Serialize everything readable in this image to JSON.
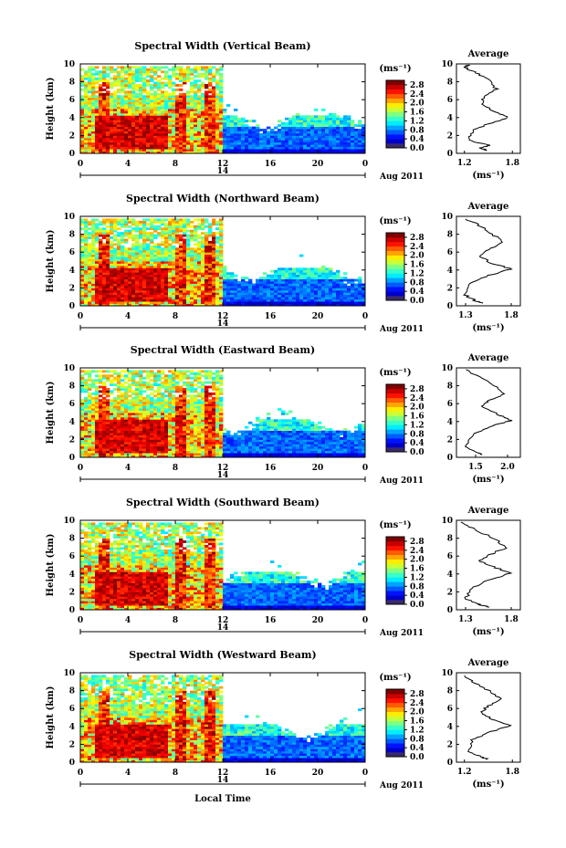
{
  "figure": {
    "xlabel": "Local Time",
    "date_label": "Aug 2011",
    "day_label": "14",
    "unit_label": "(ms⁻¹)"
  },
  "chart_data": [
    {
      "type": "heatmap",
      "title": "Spectral Width (Vertical Beam)",
      "ylabel": "Height (km)",
      "x_ticks": [
        "0",
        "4",
        "8",
        "12",
        "16",
        "20",
        "0"
      ],
      "y_ticks": [
        "0",
        "2",
        "4",
        "6",
        "8",
        "10"
      ],
      "xlim": [
        0,
        24
      ],
      "ylim": [
        0,
        10
      ],
      "colorbar": {
        "ticks": [
          "0.0",
          "0.4",
          "0.8",
          "1.2",
          "1.6",
          "2.0",
          "2.4",
          "2.8"
        ],
        "range": [
          0,
          3.0
        ]
      },
      "average": {
        "title": "Average",
        "xlabel": "(ms⁻¹)",
        "x_ticks": [
          "1.2",
          "1.8"
        ],
        "xlim": [
          1.1,
          1.9
        ],
        "y_ticks": [
          "0",
          "2",
          "4",
          "6",
          "8",
          "10"
        ],
        "profile": [
          [
            1.5,
            0.3
          ],
          [
            1.4,
            0.6
          ],
          [
            1.5,
            0.9
          ],
          [
            1.25,
            1.5
          ],
          [
            1.3,
            2.5
          ],
          [
            1.5,
            3.3
          ],
          [
            1.75,
            4.0
          ],
          [
            1.6,
            4.6
          ],
          [
            1.4,
            5.5
          ],
          [
            1.45,
            6.3
          ],
          [
            1.6,
            7.2
          ],
          [
            1.5,
            8.2
          ],
          [
            1.35,
            9.0
          ],
          [
            1.2,
            9.6
          ],
          [
            1.25,
            9.9
          ]
        ]
      }
    },
    {
      "type": "heatmap",
      "title": "Spectral Width (Northward Beam)",
      "ylabel": "Height (km)",
      "x_ticks": [
        "0",
        "4",
        "8",
        "12",
        "16",
        "20",
        "0"
      ],
      "y_ticks": [
        "0",
        "2",
        "4",
        "6",
        "8",
        "10"
      ],
      "xlim": [
        0,
        24
      ],
      "ylim": [
        0,
        10
      ],
      "colorbar": {
        "ticks": [
          "0.0",
          "0.4",
          "0.8",
          "1.2",
          "1.6",
          "2.0",
          "2.4",
          "2.8"
        ],
        "range": [
          0,
          3.0
        ]
      },
      "average": {
        "title": "Average",
        "xlabel": "(ms⁻¹)",
        "x_ticks": [
          "1.3",
          "1.8"
        ],
        "xlim": [
          1.2,
          1.9
        ],
        "y_ticks": [
          "0",
          "2",
          "4",
          "6",
          "8",
          "10"
        ],
        "profile": [
          [
            1.5,
            0.3
          ],
          [
            1.4,
            0.6
          ],
          [
            1.3,
            1.2
          ],
          [
            1.35,
            2.5
          ],
          [
            1.55,
            3.4
          ],
          [
            1.8,
            4.1
          ],
          [
            1.6,
            4.7
          ],
          [
            1.45,
            5.5
          ],
          [
            1.55,
            6.3
          ],
          [
            1.7,
            7.1
          ],
          [
            1.6,
            8.0
          ],
          [
            1.45,
            9.0
          ],
          [
            1.3,
            9.7
          ]
        ]
      }
    },
    {
      "type": "heatmap",
      "title": "Spectral Width (Eastward Beam)",
      "ylabel": "Height (km)",
      "x_ticks": [
        "0",
        "4",
        "8",
        "12",
        "16",
        "20",
        "0"
      ],
      "y_ticks": [
        "0",
        "2",
        "4",
        "6",
        "8",
        "10"
      ],
      "xlim": [
        0,
        24
      ],
      "ylim": [
        0,
        10
      ],
      "colorbar": {
        "ticks": [
          "0.0",
          "0.4",
          "0.8",
          "1.2",
          "1.6",
          "2.0",
          "2.4",
          "2.8"
        ],
        "range": [
          0,
          3.0
        ]
      },
      "average": {
        "title": "Average",
        "xlabel": "(ms⁻¹)",
        "x_ticks": [
          "1.5",
          "2.0"
        ],
        "xlim": [
          1.2,
          2.2
        ],
        "y_ticks": [
          "0",
          "2",
          "4",
          "6",
          "8",
          "10"
        ],
        "profile": [
          [
            1.6,
            0.3
          ],
          [
            1.5,
            0.6
          ],
          [
            1.35,
            1.2
          ],
          [
            1.45,
            2.5
          ],
          [
            1.7,
            3.4
          ],
          [
            2.05,
            4.1
          ],
          [
            1.85,
            4.8
          ],
          [
            1.6,
            5.6
          ],
          [
            1.7,
            6.3
          ],
          [
            1.95,
            7.1
          ],
          [
            1.8,
            8.0
          ],
          [
            1.55,
            9.0
          ],
          [
            1.35,
            9.8
          ]
        ]
      }
    },
    {
      "type": "heatmap",
      "title": "Spectral Width (Southward Beam)",
      "ylabel": "Height (km)",
      "x_ticks": [
        "0",
        "4",
        "8",
        "12",
        "16",
        "20",
        "0"
      ],
      "y_ticks": [
        "0",
        "2",
        "4",
        "6",
        "8",
        "10"
      ],
      "xlim": [
        0,
        24
      ],
      "ylim": [
        0,
        10
      ],
      "colorbar": {
        "ticks": [
          "0.0",
          "0.4",
          "0.8",
          "1.2",
          "1.6",
          "2.0",
          "2.4",
          "2.8"
        ],
        "range": [
          0,
          3.0
        ]
      },
      "average": {
        "title": "Average",
        "xlabel": "(ms⁻¹)",
        "x_ticks": [
          "1.3",
          "1.8"
        ],
        "xlim": [
          1.2,
          1.9
        ],
        "y_ticks": [
          "0",
          "2",
          "4",
          "6",
          "8",
          "10"
        ],
        "profile": [
          [
            1.55,
            0.3
          ],
          [
            1.45,
            0.6
          ],
          [
            1.3,
            1.2
          ],
          [
            1.35,
            2.4
          ],
          [
            1.55,
            3.3
          ],
          [
            1.8,
            4.1
          ],
          [
            1.6,
            4.8
          ],
          [
            1.45,
            5.5
          ],
          [
            1.6,
            6.3
          ],
          [
            1.75,
            7.0
          ],
          [
            1.6,
            8.0
          ],
          [
            1.4,
            9.0
          ],
          [
            1.25,
            9.8
          ]
        ]
      }
    },
    {
      "type": "heatmap",
      "title": "Spectral Width (Westward Beam)",
      "ylabel": "Height (km)",
      "x_ticks": [
        "0",
        "4",
        "8",
        "12",
        "16",
        "20",
        "0"
      ],
      "y_ticks": [
        "0",
        "2",
        "4",
        "6",
        "8",
        "10"
      ],
      "xlim": [
        0,
        24
      ],
      "ylim": [
        0,
        10
      ],
      "colorbar": {
        "ticks": [
          "0.0",
          "0.4",
          "0.8",
          "1.2",
          "1.6",
          "2.0",
          "2.4",
          "2.8"
        ],
        "range": [
          0,
          3.0
        ]
      },
      "average": {
        "title": "Average",
        "xlabel": "(ms⁻¹)",
        "x_ticks": [
          "1.2",
          "1.8"
        ],
        "xlim": [
          1.1,
          1.9
        ],
        "y_ticks": [
          "0",
          "2",
          "4",
          "6",
          "8",
          "10"
        ],
        "profile": [
          [
            1.5,
            0.3
          ],
          [
            1.4,
            0.6
          ],
          [
            1.25,
            1.2
          ],
          [
            1.3,
            2.5
          ],
          [
            1.5,
            3.3
          ],
          [
            1.78,
            4.1
          ],
          [
            1.55,
            4.8
          ],
          [
            1.4,
            5.5
          ],
          [
            1.5,
            6.3
          ],
          [
            1.65,
            7.1
          ],
          [
            1.5,
            8.0
          ],
          [
            1.3,
            9.0
          ],
          [
            1.2,
            9.7
          ]
        ]
      }
    }
  ]
}
